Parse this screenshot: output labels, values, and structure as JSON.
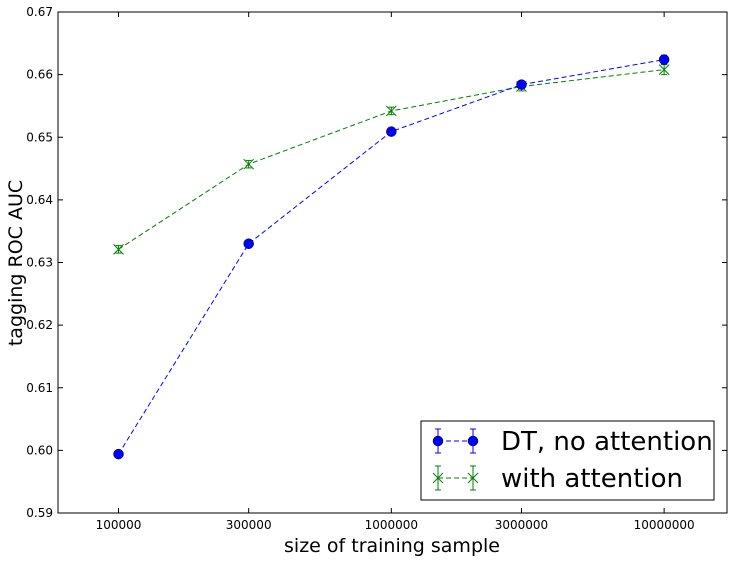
{
  "chart_data": {
    "type": "line",
    "title": "",
    "xlabel": "size of training sample",
    "ylabel": "tagging ROC AUC",
    "x_scale": "log",
    "x": [
      100000,
      300000,
      1000000,
      3000000,
      10000000
    ],
    "x_tick_labels": [
      "100000",
      "300000",
      "1000000",
      "3000000",
      "10000000"
    ],
    "xlim": [
      60000,
      17000000
    ],
    "ylim": [
      0.59,
      0.67
    ],
    "y_ticks": [
      0.59,
      0.6,
      0.61,
      0.62,
      0.63,
      0.64,
      0.65,
      0.66,
      0.67
    ],
    "y_tick_labels": [
      "0.59",
      "0.60",
      "0.61",
      "0.62",
      "0.63",
      "0.64",
      "0.65",
      "0.66",
      "0.67"
    ],
    "grid": false,
    "legend_position": "lower-right",
    "series": [
      {
        "name": "DT, no attention",
        "color": "#0000ff",
        "marker": "circle",
        "linestyle": "dashed",
        "values": [
          0.5994,
          0.633,
          0.6509,
          0.6584,
          0.6624
        ],
        "errors": [
          0.0004,
          0.0004,
          0.0005,
          0.0006,
          0.0007
        ]
      },
      {
        "name": "with attention",
        "color": "#008000",
        "marker": "x",
        "linestyle": "dashed",
        "values": [
          0.6321,
          0.6457,
          0.6542,
          0.6581,
          0.6608
        ],
        "errors": [
          0.0006,
          0.0006,
          0.0006,
          0.0007,
          0.0008
        ]
      }
    ]
  }
}
